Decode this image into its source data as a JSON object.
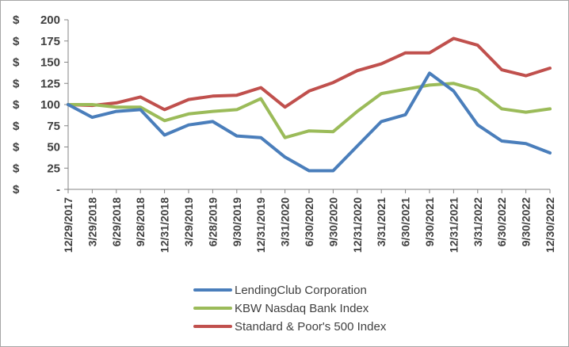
{
  "chart_data": {
    "type": "line",
    "title": "",
    "xlabel": "",
    "ylabel": "",
    "ylim": [
      0,
      200
    ],
    "y_ticks": [
      0,
      25,
      50,
      75,
      100,
      125,
      150,
      175,
      200
    ],
    "y_tick_labels": [
      "$-",
      "$25",
      "$50",
      "$75",
      "$100",
      "$125",
      "$150",
      "$175",
      "$200"
    ],
    "x": [
      "12/29/2017",
      "3/29/2018",
      "6/29/2018",
      "9/28/2018",
      "12/31/2018",
      "3/29/2019",
      "6/28/2019",
      "9/30/2019",
      "12/31/2019",
      "3/31/2020",
      "6/30/2020",
      "9/30/2020",
      "12/31/2020",
      "3/31/2021",
      "6/30/2021",
      "9/30/2021",
      "12/31/2021",
      "3/31/2022",
      "6/30/2022",
      "9/30/2022",
      "12/30/2022"
    ],
    "grid": false,
    "legend_position": "bottom",
    "series": [
      {
        "name": "LendingClub Corporation",
        "color": "#4a7ebb",
        "values": [
          100,
          85,
          92,
          94,
          64,
          76,
          80,
          63,
          61,
          38,
          22,
          22,
          51,
          80,
          88,
          137,
          116,
          76,
          57,
          54,
          43
        ]
      },
      {
        "name": "KBW Nasdaq Bank Index",
        "color": "#9bbb59",
        "values": [
          100,
          100,
          97,
          97,
          81,
          89,
          92,
          94,
          107,
          61,
          69,
          68,
          92,
          113,
          118,
          123,
          125,
          117,
          95,
          91,
          95
        ]
      },
      {
        "name": "Standard & Poor's 500 Index",
        "color": "#c0504d",
        "values": [
          100,
          99,
          102,
          109,
          94,
          106,
          110,
          111,
          120,
          97,
          116,
          126,
          140,
          148,
          161,
          161,
          178,
          170,
          141,
          134,
          143
        ]
      }
    ]
  }
}
